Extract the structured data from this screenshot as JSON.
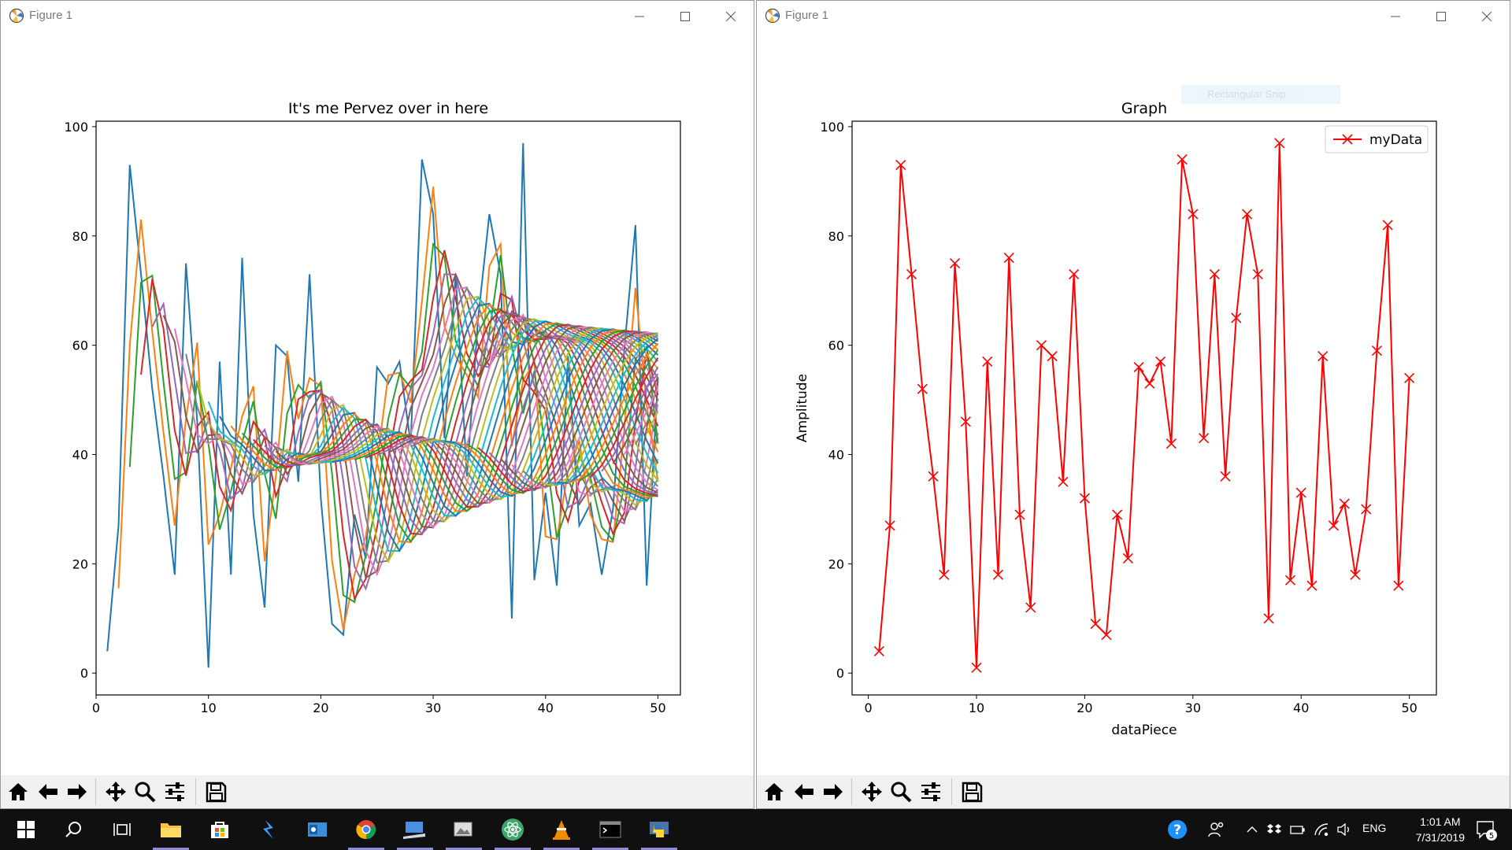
{
  "windows": [
    {
      "title": "Figure 1"
    },
    {
      "title": "Figure 1"
    }
  ],
  "snip_overlay": {
    "label": "Rectangular Snip"
  },
  "chart_data": [
    {
      "type": "line",
      "title": "It's me Pervez over in here",
      "xlabel": "",
      "ylabel": "",
      "xlim": [
        0,
        52
      ],
      "ylim": [
        -4,
        101
      ],
      "xticks": [
        0,
        10,
        20,
        30,
        40,
        50
      ],
      "yticks": [
        0,
        20,
        40,
        60,
        80,
        100
      ],
      "grid": false,
      "legend": null,
      "note_series": "Many overlapping series: series k (k=1..49) is the k-th iteration of a two-point moving-average smoothing applied to the base data, starting at x = k+1.",
      "x": [
        1,
        2,
        3,
        4,
        5,
        6,
        7,
        8,
        9,
        10,
        11,
        12,
        13,
        14,
        15,
        16,
        17,
        18,
        19,
        20,
        21,
        22,
        23,
        24,
        25,
        26,
        27,
        28,
        29,
        30,
        31,
        32,
        33,
        34,
        35,
        36,
        37,
        38,
        39,
        40,
        41,
        42,
        43,
        44,
        45,
        46,
        47,
        48,
        49,
        50
      ],
      "values": [
        4,
        27,
        93,
        73,
        52,
        36,
        18,
        75,
        46,
        1,
        57,
        18,
        76,
        29,
        12,
        60,
        58,
        35,
        73,
        32,
        9,
        7,
        29,
        21,
        56,
        53,
        57,
        42,
        94,
        84,
        43,
        73,
        36,
        65,
        84,
        73,
        10,
        97,
        17,
        33,
        16,
        58,
        27,
        31,
        18,
        30,
        59,
        82,
        16,
        54
      ],
      "smoothing_passes": 49
    },
    {
      "type": "line",
      "title": "Graph",
      "xlabel": "dataPiece",
      "ylabel": "Amplitude",
      "xlim": [
        -1.5,
        52.5
      ],
      "ylim": [
        -4,
        101
      ],
      "xticks": [
        0,
        10,
        20,
        30,
        40,
        50
      ],
      "yticks": [
        0,
        20,
        40,
        60,
        80,
        100
      ],
      "grid": false,
      "legend": "upper right",
      "series": [
        {
          "name": "myData",
          "color": "#ff0000",
          "marker": "x",
          "x": [
            1,
            2,
            3,
            4,
            5,
            6,
            7,
            8,
            9,
            10,
            11,
            12,
            13,
            14,
            15,
            16,
            17,
            18,
            19,
            20,
            21,
            22,
            23,
            24,
            25,
            26,
            27,
            28,
            29,
            30,
            31,
            32,
            33,
            34,
            35,
            36,
            37,
            38,
            39,
            40,
            41,
            42,
            43,
            44,
            45,
            46,
            47,
            48,
            49,
            50
          ],
          "values": [
            4,
            27,
            93,
            73,
            52,
            36,
            18,
            75,
            46,
            1,
            57,
            18,
            76,
            29,
            12,
            60,
            58,
            35,
            73,
            32,
            9,
            7,
            29,
            21,
            56,
            53,
            57,
            42,
            94,
            84,
            43,
            73,
            36,
            65,
            84,
            73,
            10,
            97,
            17,
            33,
            16,
            58,
            27,
            31,
            18,
            30,
            59,
            82,
            16,
            54
          ]
        }
      ]
    }
  ],
  "palette": [
    "#1f77b4",
    "#ff7f0e",
    "#2ca02c",
    "#d62728",
    "#9467bd",
    "#8c564b",
    "#e377c2",
    "#7f7f7f",
    "#bcbd22",
    "#17becf"
  ],
  "toolbar": [
    "home-icon",
    "back-arrow-icon",
    "forward-arrow-icon",
    "pan-icon",
    "zoom-icon",
    "subplots-icon",
    "save-icon"
  ],
  "taskbar": {
    "apps": [
      "start-icon",
      "search-icon",
      "task-view-icon",
      "file-explorer-icon",
      "store-icon",
      "visual-studio-icon",
      "outlook-icon",
      "chrome-icon",
      "remote-desktop-icon",
      "photos-icon",
      "atom-icon",
      "vlc-icon",
      "terminal-icon",
      "python-icon"
    ],
    "language": "ENG",
    "time": "1:01 AM",
    "date": "7/31/2019",
    "notifications": "5"
  }
}
